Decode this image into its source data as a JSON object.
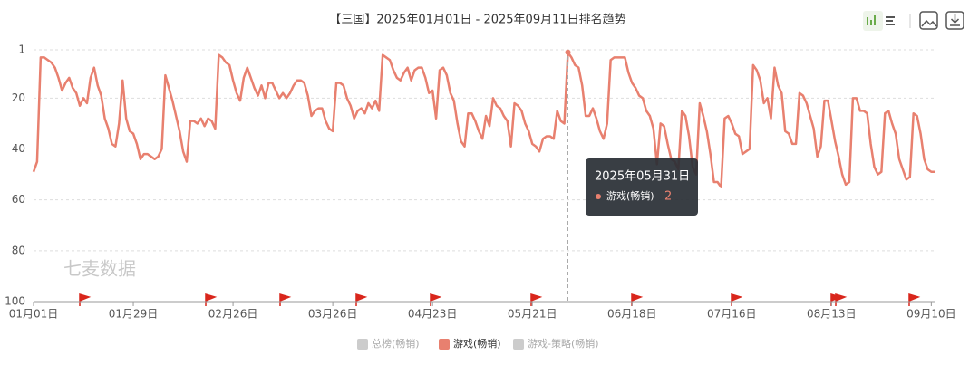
{
  "chart_data": {
    "type": "line",
    "title": "【三国】2025年01月01日 - 2025年09月11日排名趋势",
    "watermark": "七麦数据",
    "categories": [
      "01月01日",
      null,
      null,
      null,
      null,
      null,
      null,
      null,
      null,
      null,
      null,
      null,
      null,
      null,
      null,
      null,
      null,
      null,
      null,
      null,
      null,
      null,
      null,
      null,
      null,
      null,
      null,
      null,
      "01月29日",
      null,
      null,
      null,
      null,
      null,
      null,
      null,
      null,
      null,
      null,
      null,
      null,
      null,
      null,
      null,
      null,
      null,
      null,
      null,
      null,
      null,
      null,
      null,
      null,
      null,
      null,
      null,
      "02月26日",
      null,
      null,
      null,
      null,
      null,
      null,
      null,
      null,
      null,
      null,
      null,
      null,
      null,
      null,
      null,
      null,
      null,
      null,
      null,
      null,
      null,
      null,
      null,
      null,
      null,
      null,
      null,
      "03月26日",
      null,
      null,
      null,
      null,
      null,
      null,
      null,
      null,
      null,
      null,
      null,
      null,
      null,
      null,
      null,
      null,
      null,
      null,
      null,
      null,
      null,
      null,
      null,
      null,
      null,
      null,
      null,
      "04月23日",
      null,
      null,
      null,
      null,
      null,
      null,
      null,
      null,
      null,
      null,
      null,
      null,
      null,
      null,
      null,
      null,
      null,
      null,
      null,
      null,
      null,
      null,
      null,
      null,
      null,
      null,
      null,
      "05月21日",
      null,
      null,
      null,
      null,
      null,
      null,
      null,
      null,
      null,
      null,
      null,
      null,
      null,
      null,
      null,
      null,
      null,
      null,
      null,
      null,
      null,
      null,
      null,
      null,
      null,
      null,
      null,
      "06月18日",
      null,
      null,
      null,
      null,
      null,
      null,
      null,
      null,
      null,
      null,
      null,
      null,
      null,
      null,
      null,
      null,
      null,
      null,
      null,
      null,
      null,
      null,
      null,
      null,
      null,
      null,
      null,
      "07月16日",
      null,
      null,
      null,
      null,
      null,
      null,
      null,
      null,
      null,
      null,
      null,
      null,
      null,
      null,
      null,
      null,
      null,
      null,
      null,
      null,
      null,
      null,
      null,
      null,
      null,
      null,
      null,
      "08月13日",
      null,
      null,
      null,
      null,
      null,
      null,
      null,
      null,
      null,
      null,
      null,
      null,
      null,
      null,
      null,
      null,
      null,
      null,
      null,
      null,
      null,
      null,
      null,
      null,
      null,
      null,
      null,
      "09月10日",
      null
    ],
    "series": [
      {
        "name": "游戏(畅销)",
        "color": "#e8806f",
        "values": [
          49,
          45,
          4,
          4,
          5,
          6,
          8,
          12,
          17,
          14,
          12,
          16,
          18,
          23,
          20,
          22,
          12,
          8,
          15,
          19,
          28,
          32,
          38,
          39,
          30,
          13,
          28,
          33,
          34,
          38,
          44,
          42,
          42,
          43,
          44,
          43,
          40,
          11,
          16,
          21,
          27,
          33,
          41,
          45,
          29,
          29,
          30,
          28,
          31,
          28,
          29,
          32,
          3,
          4,
          6,
          7,
          13,
          18,
          21,
          12,
          8,
          12,
          16,
          19,
          15,
          20,
          14,
          14,
          17,
          20,
          18,
          20,
          18,
          15,
          13,
          13,
          14,
          19,
          27,
          25,
          24,
          24,
          29,
          32,
          33,
          14,
          14,
          15,
          20,
          23,
          28,
          25,
          24,
          26,
          22,
          24,
          21,
          25,
          3,
          4,
          5,
          9,
          12,
          13,
          10,
          8,
          13,
          9,
          8,
          8,
          12,
          18,
          17,
          28,
          9,
          8,
          11,
          18,
          21,
          30,
          37,
          39,
          26,
          26,
          29,
          33,
          36,
          27,
          31,
          20,
          23,
          24,
          27,
          29,
          39,
          22,
          23,
          25,
          30,
          33,
          38,
          39,
          41,
          36,
          35,
          35,
          36,
          25,
          29,
          30,
          2,
          4,
          7,
          8,
          15,
          27,
          27,
          24,
          28,
          33,
          36,
          30,
          5,
          4,
          4,
          4,
          4,
          10,
          14,
          16,
          19,
          20,
          25,
          27,
          32,
          46,
          30,
          31,
          38,
          44,
          45,
          48,
          25,
          27,
          35,
          47,
          50,
          22,
          27,
          33,
          42,
          53,
          53,
          55,
          28,
          27,
          30,
          34,
          35,
          42,
          41,
          40,
          7,
          9,
          13,
          22,
          20,
          28,
          8,
          15,
          18,
          33,
          34,
          38,
          38,
          18,
          19,
          22,
          27,
          32,
          43,
          39,
          21,
          21,
          29,
          37,
          43,
          50,
          54,
          53,
          20,
          20,
          25,
          25,
          26,
          38,
          47,
          50,
          49,
          26,
          25,
          30,
          34,
          44,
          48,
          52,
          51,
          26,
          27,
          34,
          44,
          48,
          49,
          49
        ]
      }
    ],
    "inactive_series": [
      {
        "name": "总榜(畅销)",
        "color": "#cccccc"
      },
      {
        "name": "游戏-策略(畅销)",
        "color": "#cccccc"
      }
    ],
    "ylim": [
      1,
      100
    ],
    "y_inverted": true,
    "yticks": [
      1,
      20,
      40,
      60,
      80,
      100
    ],
    "grid": true,
    "tooltip": {
      "title": "2025年05月31日",
      "index": 150
    }
  }
}
